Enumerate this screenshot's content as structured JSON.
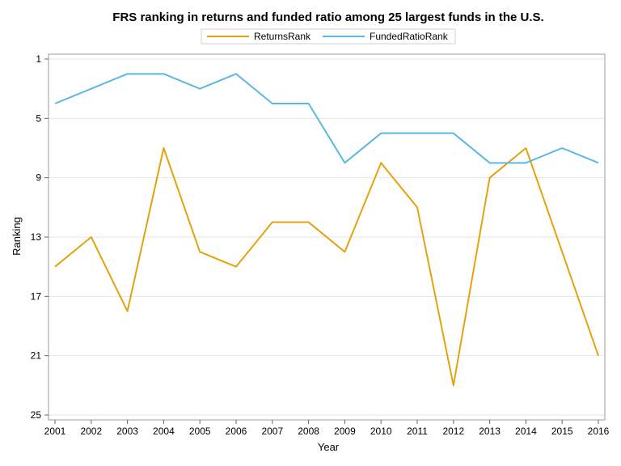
{
  "chart_data": {
    "type": "line",
    "title": "FRS ranking in returns and funded ratio among 25 largest funds in the U.S.",
    "xlabel": "Year",
    "ylabel": "Ranking",
    "x": [
      2001,
      2002,
      2003,
      2004,
      2005,
      2006,
      2007,
      2008,
      2009,
      2010,
      2011,
      2012,
      2013,
      2014,
      2015,
      2016
    ],
    "xlim": [
      2001,
      2016
    ],
    "ylim": [
      1,
      25
    ],
    "y_reversed": true,
    "y_ticks": [
      1,
      5,
      9,
      13,
      17,
      21,
      25
    ],
    "grid": "horizontal",
    "legend_position": "top",
    "series": [
      {
        "name": "ReturnsRank",
        "color": "#E3A30E",
        "values": [
          15,
          13,
          18,
          7,
          14,
          15,
          12,
          12,
          14,
          8,
          11,
          23,
          9,
          7,
          14,
          21
        ]
      },
      {
        "name": "FundedRatioRank",
        "color": "#5CB8E0",
        "values": [
          4,
          3,
          2,
          2,
          3,
          2,
          4,
          4,
          8,
          6,
          6,
          6,
          8,
          8,
          7,
          8
        ]
      }
    ]
  }
}
